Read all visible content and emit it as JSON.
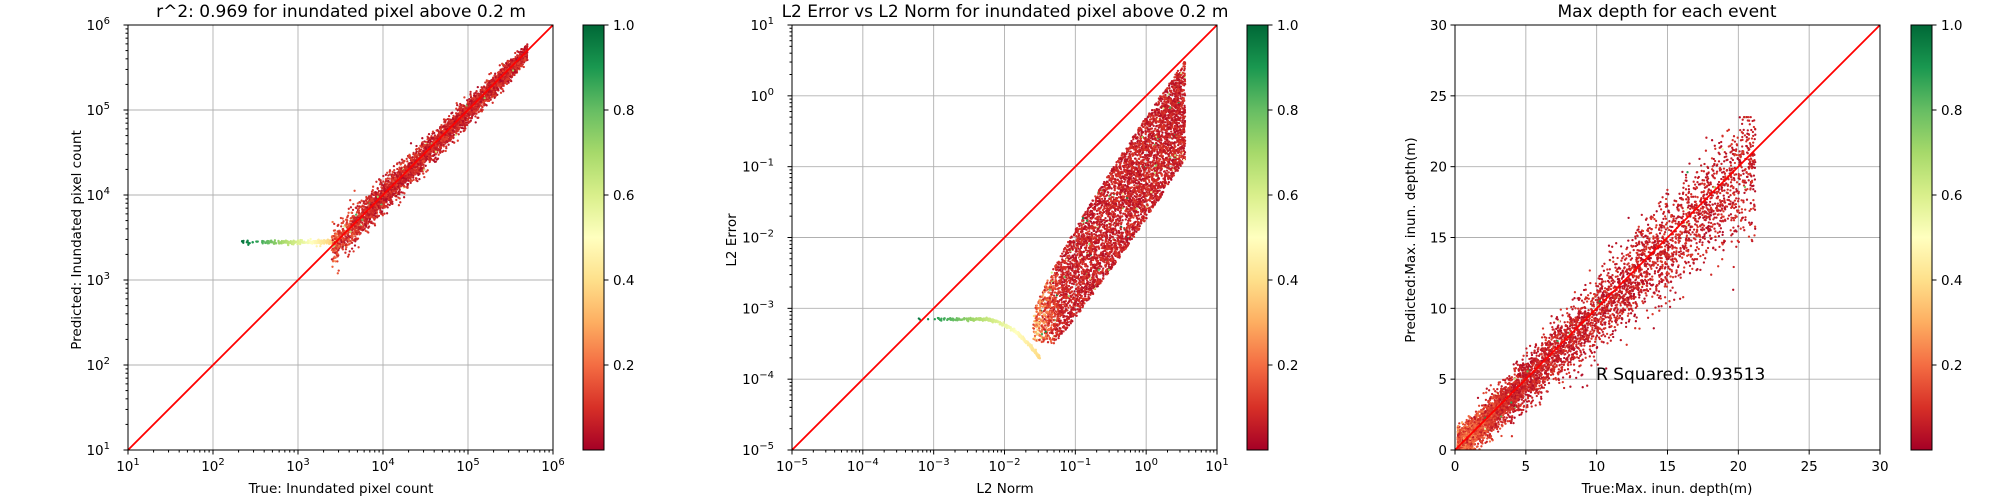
{
  "chart_data": [
    {
      "type": "scatter",
      "title": "r^2: 0.969 for inundated pixel above 0.2 m",
      "xlabel": "True: Inundated pixel count",
      "ylabel": "Predicted: Inundated pixel count",
      "xscale": "log",
      "yscale": "log",
      "xlim": [
        10,
        1000000
      ],
      "ylim": [
        10,
        1000000
      ],
      "xticks": [
        {
          "base": "10",
          "exp": "1"
        },
        {
          "base": "10",
          "exp": "2"
        },
        {
          "base": "10",
          "exp": "3"
        },
        {
          "base": "10",
          "exp": "4"
        },
        {
          "base": "10",
          "exp": "5"
        },
        {
          "base": "10",
          "exp": "6"
        }
      ],
      "yticks": [
        {
          "base": "10",
          "exp": "1"
        },
        {
          "base": "10",
          "exp": "2"
        },
        {
          "base": "10",
          "exp": "3"
        },
        {
          "base": "10",
          "exp": "4"
        },
        {
          "base": "10",
          "exp": "5"
        },
        {
          "base": "10",
          "exp": "6"
        }
      ],
      "grid": true,
      "reference_line": "y = x",
      "reference_line_color": "#ff0000",
      "colormap": "RdYlGn",
      "colorbar": {
        "range": [
          0.0,
          1.0
        ],
        "ticks": [
          "0.2",
          "0.4",
          "0.6",
          "0.8",
          "1.0"
        ]
      },
      "point_groups": [
        {
          "description": "main diagonal band",
          "x_range": [
            2500,
            500000
          ],
          "y_range": [
            2500,
            500000
          ],
          "color_value_range": [
            0.0,
            0.3
          ]
        },
        {
          "description": "low-count plateau",
          "x_range": [
            200,
            3000
          ],
          "y_value": 2800,
          "color_value_range": [
            0.6,
            1.0
          ]
        }
      ]
    },
    {
      "type": "scatter",
      "title": "L2 Error vs L2 Norm for inundated pixel above 0.2 m",
      "xlabel": "L2 Norm",
      "ylabel": "L2 Error",
      "xscale": "log",
      "yscale": "log",
      "xlim": [
        1e-05,
        10
      ],
      "ylim": [
        1e-05,
        10
      ],
      "xticks": [
        {
          "base": "10",
          "exp": "−5"
        },
        {
          "base": "10",
          "exp": "−4"
        },
        {
          "base": "10",
          "exp": "−3"
        },
        {
          "base": "10",
          "exp": "−2"
        },
        {
          "base": "10",
          "exp": "−1"
        },
        {
          "base": "10",
          "exp": "0"
        },
        {
          "base": "10",
          "exp": "1"
        }
      ],
      "yticks": [
        {
          "base": "10",
          "exp": "−5"
        },
        {
          "base": "10",
          "exp": "−4"
        },
        {
          "base": "10",
          "exp": "−3"
        },
        {
          "base": "10",
          "exp": "−2"
        },
        {
          "base": "10",
          "exp": "−1"
        },
        {
          "base": "10",
          "exp": "0"
        },
        {
          "base": "10",
          "exp": "1"
        }
      ],
      "grid": true,
      "reference_line": "y = x",
      "reference_line_color": "#ff0000",
      "colormap": "RdYlGn",
      "colorbar": {
        "range": [
          0.0,
          1.0
        ],
        "ticks": [
          "0.2",
          "0.4",
          "0.6",
          "0.8",
          "1.0"
        ]
      },
      "point_groups": [
        {
          "description": "low-norm plateau",
          "x_range": [
            0.0005,
            0.01
          ],
          "y_value": 0.0007,
          "color_value_range": [
            0.6,
            1.0
          ]
        },
        {
          "description": "main cloud",
          "x_range": [
            0.02,
            4
          ],
          "y_range": [
            0.00015,
            3
          ],
          "color_value_range": [
            0.0,
            0.4
          ]
        }
      ]
    },
    {
      "type": "scatter",
      "title": "Max depth for each event",
      "xlabel": "True:Max. inun. depth(m)",
      "ylabel": "Predicted:Max. inun. depth(m)",
      "xlim": [
        0,
        30
      ],
      "ylim": [
        0,
        30
      ],
      "xticks": [
        "0",
        "5",
        "10",
        "15",
        "20",
        "25",
        "30"
      ],
      "yticks": [
        "0",
        "5",
        "10",
        "15",
        "20",
        "25",
        "30"
      ],
      "grid": true,
      "reference_line": "y = x",
      "reference_line_color": "#ff0000",
      "annotation": "R Squared: 0.93513",
      "colormap": "RdYlGn",
      "colorbar": {
        "range": [
          0.0,
          1.0
        ],
        "ticks": [
          "0.2",
          "0.4",
          "0.6",
          "0.8",
          "1.0"
        ]
      },
      "point_groups": [
        {
          "description": "dense cloud along diagonal, slightly below y=x",
          "x_range": [
            0,
            21.5
          ],
          "y_range": [
            0,
            23.5
          ],
          "color_value_range": [
            0.0,
            0.35
          ]
        }
      ]
    }
  ]
}
